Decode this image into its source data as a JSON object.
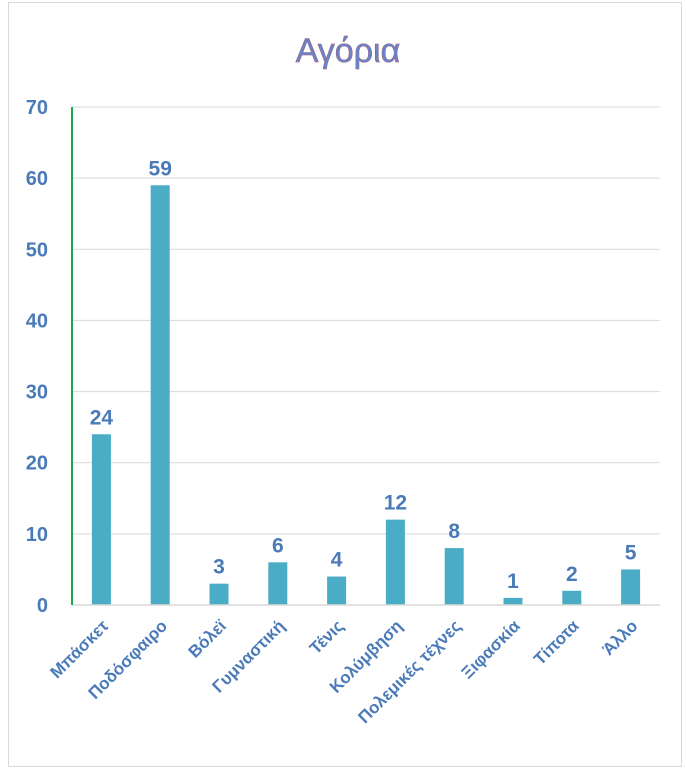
{
  "chart_data": {
    "type": "bar",
    "title": "Αγόρια",
    "categories": [
      "Μπάσκετ",
      "Ποδόσφαιρο",
      "Βόλεϊ",
      "Γυμναστική",
      "Τένις",
      "Κολύμβηση",
      "Πολεμικές τέχνες",
      "Ξιφασκία",
      "Τίποτα",
      "Άλλο"
    ],
    "values": [
      24,
      59,
      3,
      6,
      4,
      12,
      8,
      1,
      2,
      5
    ],
    "ylim": [
      0,
      70
    ],
    "yticks": [
      0,
      10,
      20,
      30,
      40,
      50,
      60,
      70
    ],
    "xlabel": "",
    "ylabel": "",
    "grid": true,
    "legend": "none",
    "data_labels": true,
    "bar_color": "#4bacc6",
    "text_color": "#4a7ab8",
    "axis_color": "#1aa84f",
    "grid_color": "#d9d9d9"
  }
}
